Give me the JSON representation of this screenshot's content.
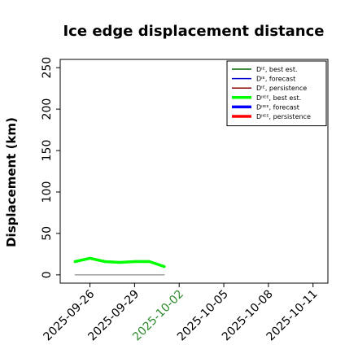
{
  "chart_data": {
    "type": "line",
    "title": "Ice edge displacement distance",
    "ylabel": "Displacement (km)",
    "xlabel": "",
    "ylim": [
      -10,
      260
    ],
    "yticks": [
      0,
      50,
      100,
      150,
      200,
      250
    ],
    "xlim": [
      "2025-09-24",
      "2025-10-12"
    ],
    "xticks": [
      "2025-09-26",
      "2025-09-29",
      "2025-10-02",
      "2025-10-05",
      "2025-10-08",
      "2025-10-11"
    ],
    "xtick_colors": [
      "#000000",
      "#000000",
      "#2e8b2e",
      "#000000",
      "#000000",
      "#000000"
    ],
    "grid": false,
    "legend_position": "top-right",
    "series": [
      {
        "name": "Dᴵᴱ, best est.",
        "color": "#006400",
        "width": 1.2,
        "legend_width": 1.5,
        "x": [
          "2025-09-25",
          "2025-09-26",
          "2025-09-27",
          "2025-09-28",
          "2025-09-29",
          "2025-09-30",
          "2025-10-01"
        ],
        "y": [
          17,
          21,
          17,
          15,
          17,
          17,
          11
        ]
      },
      {
        "name": "Dᴵᴱ, forecast",
        "color": "#0000cd",
        "width": 1.2,
        "legend_width": 1.5,
        "x": [],
        "y": []
      },
      {
        "name": "Dᴵᴱ, persistence",
        "color": "#8b0000",
        "width": 1.2,
        "legend_width": 1.5,
        "x": [],
        "y": []
      },
      {
        "name": "Dᴵᴵᴱᴱ, best est.",
        "color": "#00ff00",
        "width": 3.5,
        "legend_width": 3.5,
        "x": [
          "2025-09-25",
          "2025-09-26",
          "2025-09-27",
          "2025-09-28",
          "2025-09-29",
          "2025-09-30",
          "2025-10-01"
        ],
        "y": [
          16,
          20,
          16,
          15,
          16,
          16,
          10
        ]
      },
      {
        "name": "Dᴵᴵᴱᴱ, forecast",
        "color": "#0000ff",
        "width": 3.5,
        "legend_width": 3.5,
        "x": [],
        "y": []
      },
      {
        "name": "Dᴵᴵᴱᴱ, persistence",
        "color": "#ff0000",
        "width": 3.5,
        "legend_width": 3.5,
        "x": [],
        "y": []
      },
      {
        "name": "",
        "color": "#808080",
        "width": 1.2,
        "legend_width": 0,
        "x": [
          "2025-09-25",
          "2025-10-01"
        ],
        "y": [
          0,
          0
        ]
      }
    ]
  }
}
